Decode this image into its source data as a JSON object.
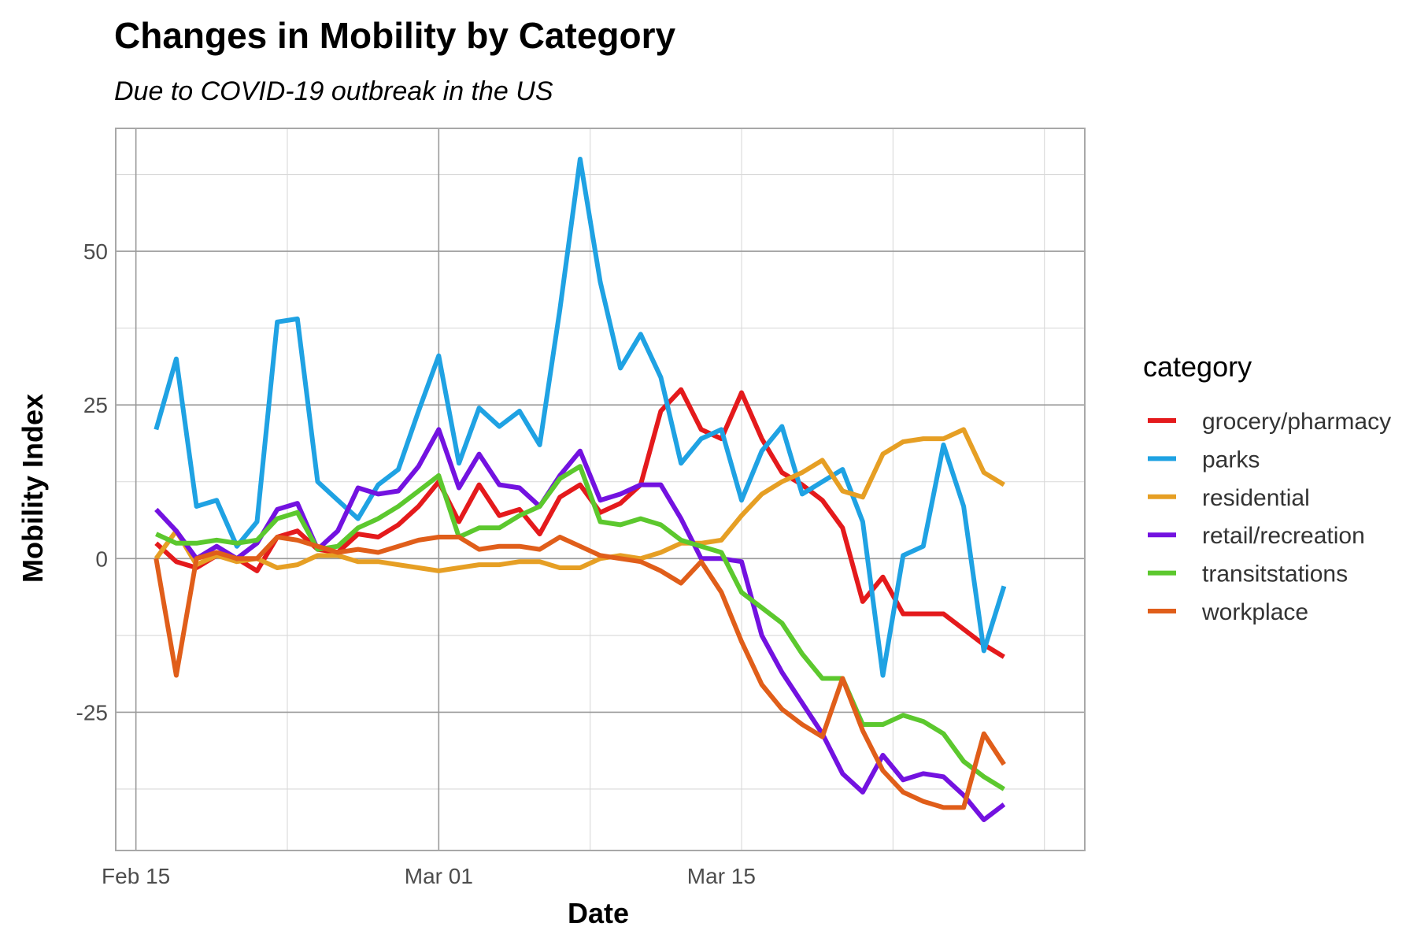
{
  "chart_data": {
    "type": "line",
    "title": "Changes in Mobility by Category",
    "subtitle": "Due to COVID-19 outbreak in the US",
    "xlabel": "Date",
    "ylabel": "Mobility Index",
    "x": [
      "2020-02-16",
      "2020-02-17",
      "2020-02-18",
      "2020-02-19",
      "2020-02-20",
      "2020-02-21",
      "2020-02-22",
      "2020-02-23",
      "2020-02-24",
      "2020-02-25",
      "2020-02-26",
      "2020-02-27",
      "2020-02-28",
      "2020-02-29",
      "2020-03-01",
      "2020-03-02",
      "2020-03-03",
      "2020-03-04",
      "2020-03-05",
      "2020-03-06",
      "2020-03-07",
      "2020-03-08",
      "2020-03-09",
      "2020-03-10",
      "2020-03-11",
      "2020-03-12",
      "2020-03-13",
      "2020-03-14",
      "2020-03-15",
      "2020-03-16",
      "2020-03-17",
      "2020-03-18",
      "2020-03-19",
      "2020-03-20",
      "2020-03-21",
      "2020-03-22",
      "2020-03-23",
      "2020-03-24",
      "2020-03-25",
      "2020-03-26",
      "2020-03-27",
      "2020-03-28",
      "2020-03-29"
    ],
    "x_ticks": [
      {
        "date": "2020-02-15",
        "label": "Feb 15"
      },
      {
        "date": "2020-03-01",
        "label": "Mar 01"
      },
      {
        "date": "2020-03-15",
        "label": "Mar 15"
      }
    ],
    "xlim": [
      "2020-02-14",
      "2020-04-02"
    ],
    "y_ticks": [
      -25,
      0,
      25,
      50
    ],
    "ylim": [
      -47.5,
      70
    ],
    "grid": true,
    "legend_title": "category",
    "legend_position": "right",
    "series": [
      {
        "name": "grocery/pharmacy",
        "color": "#E41A1C",
        "values": [
          2.5,
          -0.5,
          -1.5,
          0.5,
          0,
          -2,
          3.5,
          4.5,
          1.5,
          1,
          4,
          3.5,
          5.5,
          8.5,
          12.5,
          6,
          12,
          7,
          8,
          4,
          10,
          12,
          7.5,
          9,
          12,
          24,
          27.5,
          21,
          19.5,
          27,
          19.5,
          14,
          12,
          9.5,
          5,
          -7,
          -3,
          -9,
          -9,
          -9,
          -11.5,
          -14,
          -16
        ]
      },
      {
        "name": "parks",
        "color": "#1FA2E3",
        "values": [
          21,
          32.5,
          8.5,
          9.5,
          2,
          6,
          38.5,
          39,
          12.5,
          9.5,
          6.5,
          12,
          14.5,
          24,
          33,
          15.5,
          24.5,
          21.5,
          24,
          18.5,
          40.5,
          65,
          45,
          31,
          36.5,
          29.5,
          15.5,
          19.5,
          21,
          9.5,
          17.5,
          21.5,
          10.5,
          12.5,
          14.5,
          6,
          -19,
          0.5,
          2,
          18.5,
          8.5,
          -15,
          -4.5
        ]
      },
      {
        "name": "residential",
        "color": "#E69F24",
        "values": [
          0,
          4.5,
          -1,
          0.5,
          -0.5,
          0,
          -1.5,
          -1,
          0.5,
          0.5,
          -0.5,
          -0.5,
          -1,
          -1.5,
          -2,
          -1.5,
          -1,
          -1,
          -0.5,
          -0.5,
          -1.5,
          -1.5,
          0,
          0.5,
          0,
          1,
          2.5,
          2.5,
          3,
          7,
          10.5,
          12.5,
          14,
          16,
          11,
          10,
          17,
          19,
          19.5,
          19.5,
          21,
          14,
          12
        ]
      },
      {
        "name": "retail/recreation",
        "color": "#7312E0",
        "values": [
          8,
          4.5,
          0,
          2,
          0,
          2.5,
          8,
          9,
          1.5,
          4.5,
          11.5,
          10.5,
          11,
          15,
          21,
          11.5,
          17,
          12,
          11.5,
          8.5,
          13.5,
          17.5,
          9.5,
          10.5,
          12,
          12,
          6.5,
          0,
          0,
          -0.5,
          -12.5,
          -18.5,
          -23.5,
          -28.5,
          -35,
          -38,
          -32,
          -36,
          -35,
          -35.5,
          -38.5,
          -42.5,
          -40
        ]
      },
      {
        "name": "transitstations",
        "color": "#5CC82E",
        "values": [
          4,
          2.5,
          2.5,
          3,
          2.5,
          3,
          6.5,
          7.5,
          1.5,
          2,
          5,
          6.5,
          8.5,
          11,
          13.5,
          3.5,
          5,
          5,
          7,
          8.5,
          13,
          15,
          6,
          5.5,
          6.5,
          5.5,
          3,
          2,
          1,
          -5.5,
          -8,
          -10.5,
          -15.5,
          -19.5,
          -19.5,
          -27,
          -27,
          -25.5,
          -26.5,
          -28.5,
          -33,
          -35.5,
          -37.5
        ]
      },
      {
        "name": "workplace",
        "color": "#E05E1A",
        "values": [
          0,
          -19,
          0,
          1,
          0,
          0,
          3.5,
          3,
          2,
          1,
          1.5,
          1,
          2,
          3,
          3.5,
          3.5,
          1.5,
          2,
          2,
          1.5,
          3.5,
          2,
          0.5,
          0,
          -0.5,
          -2,
          -4,
          -0.5,
          -5.5,
          -13.5,
          -20.5,
          -24.5,
          -27,
          -29,
          -19.5,
          -28,
          -34.5,
          -38,
          -39.5,
          -40.5,
          -40.5,
          -28.5,
          -33.5
        ]
      }
    ]
  }
}
